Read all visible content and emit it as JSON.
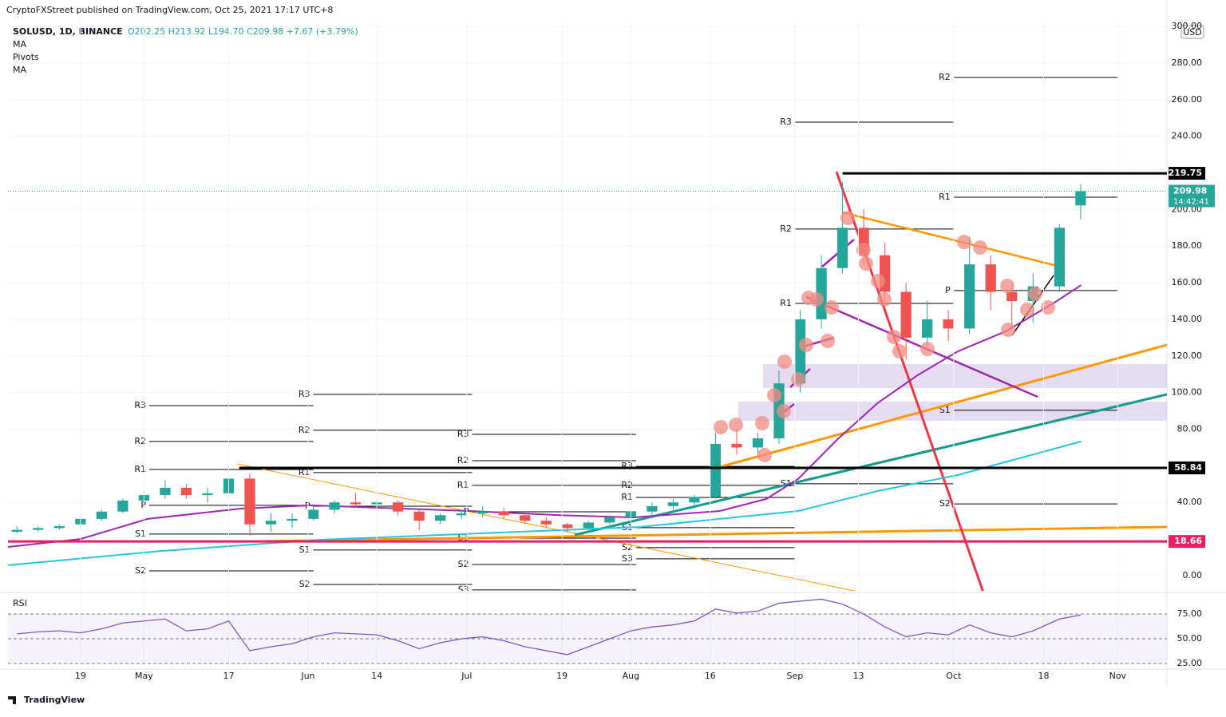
{
  "header": "CryptoFXStreet published on TradingView.com, Oct 25, 2021 17:17 UTC+8",
  "footer": "TradingView",
  "chart_data": {
    "type": "candlestick",
    "symbol": "SOLUSD, 1D, BINANCE",
    "quote": "O202.25 H213.92 L194.70 C209.98 +7.67 (+3.79%)",
    "indicators": [
      "MA",
      "Pivots",
      "MA"
    ],
    "currency": "USD",
    "up_color": "#26a69a",
    "down_color": "#ef5350",
    "x": [
      97,
      101,
      105,
      109,
      113,
      117,
      121,
      125,
      129,
      133,
      137,
      141,
      145,
      149,
      153,
      157,
      161,
      165,
      169,
      173,
      177,
      181,
      185,
      189,
      193,
      197,
      201,
      205,
      209,
      213,
      217,
      221,
      225,
      229,
      233,
      237,
      241,
      245,
      249,
      253,
      257,
      261,
      265,
      269,
      273,
      277,
      281,
      285,
      289,
      294,
      298
    ],
    "open": [
      24,
      25,
      26,
      28,
      31,
      35,
      41,
      44,
      48,
      44,
      45,
      53,
      28,
      30,
      31,
      36,
      40,
      39,
      40,
      35,
      30,
      33,
      34,
      35,
      33,
      30,
      28,
      26,
      29,
      32,
      35,
      38,
      40,
      43,
      72,
      70,
      75,
      105,
      140,
      168,
      190,
      175,
      155,
      130,
      140,
      135,
      170,
      155,
      150,
      158,
      202.25
    ],
    "high": [
      27,
      27,
      28,
      32,
      36,
      42,
      46,
      52,
      50,
      48,
      58,
      56,
      34,
      34,
      38,
      41,
      45,
      42,
      41,
      36,
      34,
      36,
      38,
      37,
      34,
      32,
      29,
      30,
      33,
      36,
      40,
      42,
      44,
      78,
      80,
      78,
      112,
      145,
      175,
      215,
      200,
      182,
      160,
      150,
      145,
      185,
      175,
      160,
      165,
      192,
      213.92
    ],
    "low": [
      23,
      24,
      25,
      26,
      30,
      34,
      38,
      42,
      42,
      40,
      42,
      22,
      24,
      26,
      30,
      34,
      37,
      36,
      33,
      25,
      28,
      31,
      32,
      31,
      28,
      26,
      24,
      25,
      28,
      31,
      33,
      36,
      38,
      42,
      66,
      66,
      72,
      100,
      135,
      165,
      170,
      150,
      118,
      125,
      128,
      132,
      145,
      135,
      138,
      155,
      194.7
    ],
    "close": [
      25,
      26,
      27,
      31,
      35,
      41,
      44,
      48,
      44,
      45,
      53,
      28,
      30,
      31,
      36,
      40,
      39,
      40,
      35,
      30,
      33,
      34,
      35,
      33,
      30,
      28,
      26,
      29,
      32,
      35,
      38,
      40,
      43,
      72,
      70,
      75,
      105,
      140,
      168,
      190,
      175,
      155,
      130,
      140,
      135,
      170,
      155,
      150,
      158,
      190,
      209.98
    ],
    "moving_averages": [
      {
        "color": "#9c27b0",
        "x": [
          95.3,
          109,
          121.7,
          139.3,
          152.6,
          182.6,
          199.6,
          213.5,
          229.8,
          238.6,
          244.6,
          252.1,
          259.6,
          267.2,
          274.8,
          283.8,
          292.8,
          298.1
        ],
        "values": [
          15.7,
          20,
          31,
          36.6,
          38.4,
          35.3,
          33,
          31.8,
          35.3,
          41.9,
          52.8,
          74.6,
          94.2,
          109.5,
          122.5,
          133.4,
          148.7,
          158.7
        ]
      },
      {
        "color": "#26c6da",
        "x": [
          95.3,
          124.4,
          154.4,
          184.5,
          214.7,
          244.6,
          259.6,
          274.8,
          298.1
        ],
        "values": [
          5.7,
          13.5,
          19.6,
          23.1,
          26.6,
          35.3,
          46.2,
          55,
          73.3
        ]
      }
    ],
    "pivots": [
      {
        "label": "R3",
        "value": 92.9,
        "x": [
          122,
          153
        ]
      },
      {
        "label": "R2",
        "value": 73.3,
        "x": [
          122,
          153
        ]
      },
      {
        "label": "R1",
        "value": 58,
        "x": [
          122,
          153
        ]
      },
      {
        "label": "P",
        "value": 38.4,
        "x": [
          122,
          153
        ]
      },
      {
        "label": "S1",
        "value": 22.7,
        "x": [
          122,
          153
        ]
      },
      {
        "label": "S2",
        "value": 2.6,
        "x": [
          122,
          153
        ]
      },
      {
        "label": "R3",
        "value": 99,
        "x": [
          153,
          183
        ]
      },
      {
        "label": "R2",
        "value": 79.4,
        "x": [
          153,
          183
        ]
      },
      {
        "label": "R1",
        "value": 56.3,
        "x": [
          153,
          183
        ]
      },
      {
        "label": "P",
        "value": 37.9,
        "x": [
          153,
          183
        ]
      },
      {
        "label": "S1",
        "value": 14,
        "x": [
          153,
          183
        ]
      },
      {
        "label": "S2",
        "value": -4.8,
        "x": [
          153,
          183
        ]
      },
      {
        "label": "R3",
        "value": 77.2,
        "x": [
          183,
          214
        ]
      },
      {
        "label": "R2",
        "value": 62.8,
        "x": [
          183,
          214
        ]
      },
      {
        "label": "R1",
        "value": 49.3,
        "x": [
          183,
          214
        ]
      },
      {
        "label": "P",
        "value": 34.9,
        "x": [
          183,
          214
        ]
      },
      {
        "label": "S1",
        "value": 20.5,
        "x": [
          183,
          214
        ]
      },
      {
        "label": "S2",
        "value": 6.1,
        "x": [
          183,
          214
        ]
      },
      {
        "label": "S3",
        "value": -7.8,
        "x": [
          183,
          214
        ]
      },
      {
        "label": "R3",
        "value": 59.7,
        "x": [
          214,
          244
        ]
      },
      {
        "label": "R2",
        "value": 49.3,
        "x": [
          214,
          244
        ]
      },
      {
        "label": "R1",
        "value": 42.7,
        "x": [
          214,
          244
        ]
      },
      {
        "label": "S1",
        "value": 26.2,
        "x": [
          214,
          244
        ]
      },
      {
        "label": "S2",
        "value": 15.3,
        "x": [
          214,
          244
        ]
      },
      {
        "label": "S3",
        "value": 9.2,
        "x": [
          214,
          244
        ]
      },
      {
        "label": "R3",
        "value": 247.7,
        "x": [
          244,
          274
        ]
      },
      {
        "label": "R2",
        "value": 189.3,
        "x": [
          244,
          274
        ]
      },
      {
        "label": "R1",
        "value": 148.7,
        "x": [
          244,
          274
        ]
      },
      {
        "label": "S1",
        "value": 50.2,
        "x": [
          244,
          274
        ]
      },
      {
        "label": "R2",
        "value": 272.1,
        "x": [
          274,
          305
        ]
      },
      {
        "label": "R1",
        "value": 206.7,
        "x": [
          274,
          305
        ]
      },
      {
        "label": "P",
        "value": 155.7,
        "x": [
          274,
          305
        ]
      },
      {
        "label": "S1",
        "value": 90.3,
        "x": [
          274,
          305
        ]
      },
      {
        "label": "S2",
        "value": 39.2,
        "x": [
          274,
          305
        ]
      }
    ],
    "levels": [
      {
        "value": 219.75,
        "color": "#000000",
        "from": 253
      },
      {
        "value": 58.84,
        "color": "#000000",
        "from": 139
      },
      {
        "value": 18.66,
        "color": "#e91e63",
        "from": 95.3
      }
    ],
    "last_price": 209.98,
    "countdown": "14:42:41",
    "last_color": "#26a69a",
    "xlim": [
      95.3,
      314.3
    ],
    "ylim": [
      -8.3,
      302.2
    ],
    "yticks": [
      {
        "value": 0,
        "label": "0.00"
      },
      {
        "value": 40,
        "label": "40.00"
      },
      {
        "value": 80,
        "label": "80.00"
      },
      {
        "value": 100,
        "label": "100.00"
      },
      {
        "value": 120,
        "label": "120.00"
      },
      {
        "value": 140,
        "label": "140.00"
      },
      {
        "value": 160,
        "label": "160.00"
      },
      {
        "value": 180,
        "label": "180.00"
      },
      {
        "value": 200,
        "label": "200.00"
      },
      {
        "value": 240,
        "label": "240.00"
      },
      {
        "value": 260,
        "label": "260.00"
      },
      {
        "value": 280,
        "label": "280.00"
      },
      {
        "value": 300,
        "label": "300.00"
      }
    ],
    "xticks": [
      {
        "value": 109,
        "label": "19"
      },
      {
        "value": 121,
        "label": "May"
      },
      {
        "value": 137,
        "label": "17"
      },
      {
        "value": 152,
        "label": "Jun"
      },
      {
        "value": 165,
        "label": "14"
      },
      {
        "value": 182,
        "label": "Jul"
      },
      {
        "value": 200,
        "label": "19"
      },
      {
        "value": 213,
        "label": "Aug"
      },
      {
        "value": 228,
        "label": "16"
      },
      {
        "value": 244,
        "label": "Sep"
      },
      {
        "value": 256,
        "label": "13"
      },
      {
        "value": 274,
        "label": "Oct"
      },
      {
        "value": 291,
        "label": "18"
      },
      {
        "value": 305,
        "label": "Nov"
      }
    ],
    "grid": true,
    "rsi": {
      "name": "RSI",
      "color": "#7e57c2",
      "ylim": [
        19.4,
        94.4
      ],
      "yticks": [
        {
          "value": 25,
          "label": "25.00"
        },
        {
          "value": 50,
          "label": "50.00"
        },
        {
          "value": 75,
          "label": "75.00"
        }
      ],
      "values": [
        55,
        57,
        58,
        56,
        60,
        66,
        68,
        70,
        58,
        60,
        68,
        38,
        42,
        45,
        52,
        56,
        55,
        54,
        48,
        40,
        46,
        50,
        52,
        48,
        42,
        38,
        34,
        42,
        50,
        58,
        62,
        64,
        68,
        80,
        76,
        78,
        86,
        88,
        90,
        85,
        75,
        62,
        52,
        56,
        54,
        64,
        56,
        52,
        58,
        70,
        74
      ]
    }
  }
}
